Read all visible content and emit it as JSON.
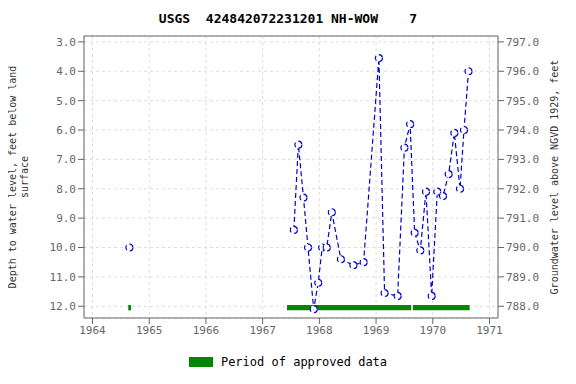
{
  "chart_data": {
    "type": "line",
    "title": "USGS  424842072231201 NH-WOW    7",
    "y_label": "Depth to water level, feet below land\nsurface",
    "y2_label": "Groundwater level above NGVD 1929, feet",
    "xlim": [
      1963.85,
      1971.15
    ],
    "xticks": [
      1964,
      1965,
      1966,
      1967,
      1968,
      1969,
      1970,
      1971
    ],
    "ylim": [
      12.4,
      2.8
    ],
    "yticks": [
      {
        "value": 3.0,
        "label": "3.0"
      },
      {
        "value": 4.0,
        "label": "4.0"
      },
      {
        "value": 5.0,
        "label": "5.0"
      },
      {
        "value": 6.0,
        "label": "6.0"
      },
      {
        "value": 7.0,
        "label": "7.0"
      },
      {
        "value": 8.0,
        "label": "8.0"
      },
      {
        "value": 9.0,
        "label": "9.0"
      },
      {
        "value": 10.0,
        "label": "10.0"
      },
      {
        "value": 11.0,
        "label": "11.0"
      },
      {
        "value": 12.0,
        "label": "12.0"
      }
    ],
    "y2lim": [
      787.6,
      797.2
    ],
    "y2ticks": [
      {
        "value": 788.0,
        "label": "788.0"
      },
      {
        "value": 789.0,
        "label": "789.0"
      },
      {
        "value": 790.0,
        "label": "790.0"
      },
      {
        "value": 791.0,
        "label": "791.0"
      },
      {
        "value": 792.0,
        "label": "792.0"
      },
      {
        "value": 793.0,
        "label": "793.0"
      },
      {
        "value": 794.0,
        "label": "794.0"
      },
      {
        "value": 795.0,
        "label": "795.0"
      },
      {
        "value": 796.0,
        "label": "796.0"
      },
      {
        "value": 797.0,
        "label": "797.0"
      }
    ],
    "grid": true,
    "series": [
      {
        "x": [
          1964.65
        ],
        "values": [
          10.0
        ],
        "color": "#0000CC",
        "line_style": "dashed",
        "marker": "open_circle"
      },
      {
        "x": [
          1967.55,
          1967.63,
          1967.72,
          1967.8,
          1967.9,
          1967.98,
          1968.05,
          1968.13,
          1968.22,
          1968.38,
          1968.6,
          1968.78,
          1969.05,
          1969.15,
          1969.38,
          1969.5,
          1969.6,
          1969.68,
          1969.78,
          1969.88,
          1969.98,
          1970.08,
          1970.18,
          1970.28,
          1970.38,
          1970.48,
          1970.55,
          1970.63
        ],
        "values": [
          9.4,
          6.5,
          8.3,
          10.0,
          12.1,
          11.2,
          10.0,
          10.0,
          8.8,
          10.4,
          10.6,
          10.5,
          3.55,
          11.55,
          11.65,
          6.6,
          5.8,
          9.5,
          10.1,
          8.1,
          11.65,
          8.1,
          8.25,
          7.5,
          6.1,
          8.0,
          6.0,
          4.0
        ],
        "color": "#0000CC",
        "line_style": "dashed",
        "marker": "open_circle"
      }
    ],
    "approved_periods": {
      "name": "Period of approved data",
      "color": "#008800",
      "ranges": [
        [
          1964.63,
          1964.68
        ],
        [
          1967.43,
          1969.62
        ],
        [
          1969.65,
          1970.65
        ]
      ],
      "y": 12.05,
      "height": 0.18
    }
  }
}
